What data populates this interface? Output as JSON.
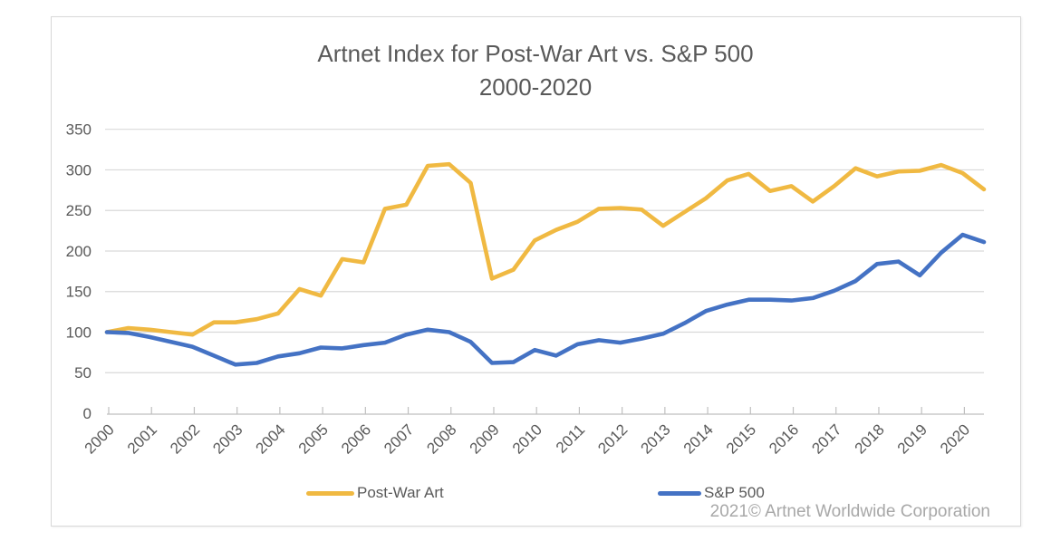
{
  "title": {
    "line1": "Artnet Index for Post-War Art vs. S&P 500",
    "line2": "2000-2020"
  },
  "legend": {
    "position": "bottom",
    "items": [
      {
        "label": "Post-War Art",
        "color": "#F0B942"
      },
      {
        "label": "S&P 500",
        "color": "#4472C4"
      }
    ]
  },
  "footer": {
    "copyright": "2021© Artnet Worldwide Corporation"
  },
  "colors": {
    "postwar_art_line": "#F0B942",
    "sp500_line": "#4472C4",
    "gridline": "#D9D9D9",
    "axis": "#BFBFBF",
    "text": "#595959",
    "footer_text": "#A8A8A8",
    "frame_border": "#D8D8D8"
  },
  "chart_data": {
    "type": "line",
    "title": "Artnet Index for Post-War Art vs. S&P 500 2000-2020",
    "xlabel": "",
    "ylabel": "",
    "ylim": [
      0,
      350
    ],
    "yticks": [
      0,
      50,
      100,
      150,
      200,
      250,
      300,
      350
    ],
    "grid": true,
    "legend_position": "bottom",
    "xtick_labels": [
      "2000",
      "2001",
      "2002",
      "2003",
      "2004",
      "2005",
      "2006",
      "2007",
      "2008",
      "2009",
      "2010",
      "2011",
      "2012",
      "2013",
      "2014",
      "2015",
      "2016",
      "2017",
      "2018",
      "2019",
      "2020"
    ],
    "x": [
      2000,
      2000.5,
      2001,
      2001.5,
      2002,
      2002.5,
      2003,
      2003.5,
      2004,
      2004.5,
      2005,
      2005.5,
      2006,
      2006.5,
      2007,
      2007.5,
      2008,
      2008.5,
      2009,
      2009.5,
      2010,
      2010.5,
      2011,
      2011.5,
      2012,
      2012.5,
      2013,
      2013.5,
      2014,
      2014.5,
      2015,
      2015.5,
      2016,
      2016.5,
      2017,
      2017.5,
      2018,
      2018.5,
      2019,
      2019.5,
      2020,
      2020.5
    ],
    "series": [
      {
        "name": "Post-War Art",
        "color": "#F0B942",
        "values": [
          100,
          105,
          103,
          100,
          97,
          112,
          112,
          116,
          123,
          153,
          145,
          190,
          186,
          252,
          257,
          305,
          307,
          284,
          166,
          177,
          213,
          226,
          236,
          252,
          253,
          251,
          231,
          248,
          265,
          287,
          295,
          274,
          280,
          261,
          280,
          302,
          292,
          298,
          299,
          306,
          296,
          276
        ]
      },
      {
        "name": "S&P 500",
        "color": "#4472C4",
        "values": [
          100,
          99,
          94,
          88,
          82,
          71,
          60,
          62,
          70,
          74,
          81,
          80,
          84,
          87,
          97,
          103,
          100,
          88,
          62,
          63,
          78,
          71,
          85,
          90,
          87,
          92,
          98,
          111,
          126,
          134,
          140,
          140,
          139,
          142,
          151,
          163,
          184,
          187,
          170,
          198,
          220,
          211
        ]
      }
    ]
  }
}
